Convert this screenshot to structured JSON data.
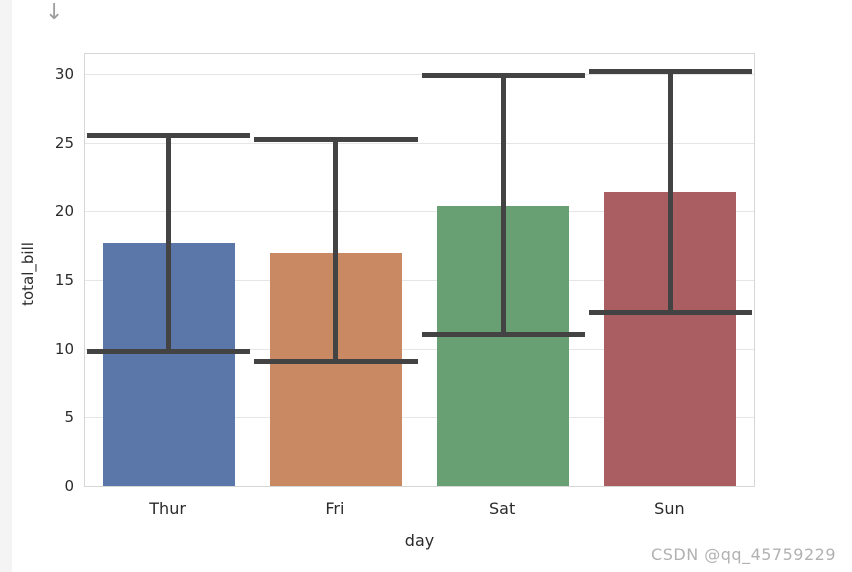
{
  "page": {
    "arrow_icon": "↓",
    "watermark": "CSDN @qq_45759229"
  },
  "chart_data": {
    "type": "bar",
    "title": "",
    "xlabel": "day",
    "ylabel": "total_bill",
    "categories": [
      "Thur",
      "Fri",
      "Sat",
      "Sun"
    ],
    "values": [
      17.7,
      17.0,
      20.4,
      21.4
    ],
    "error_low": [
      9.8,
      9.1,
      11.0,
      12.6
    ],
    "error_high": [
      25.5,
      25.2,
      29.9,
      30.2
    ],
    "bar_colors": [
      "#5b76a8",
      "#c98a63",
      "#68a073",
      "#ab5e61"
    ],
    "error_bar_color": "#434343",
    "yticks": [
      0,
      5,
      10,
      15,
      20,
      25,
      30
    ],
    "ylim": [
      0,
      31.45
    ],
    "grid": true,
    "grid_color": "#e6e6e6",
    "legend": "none",
    "style": "seaborn-whitegrid"
  }
}
